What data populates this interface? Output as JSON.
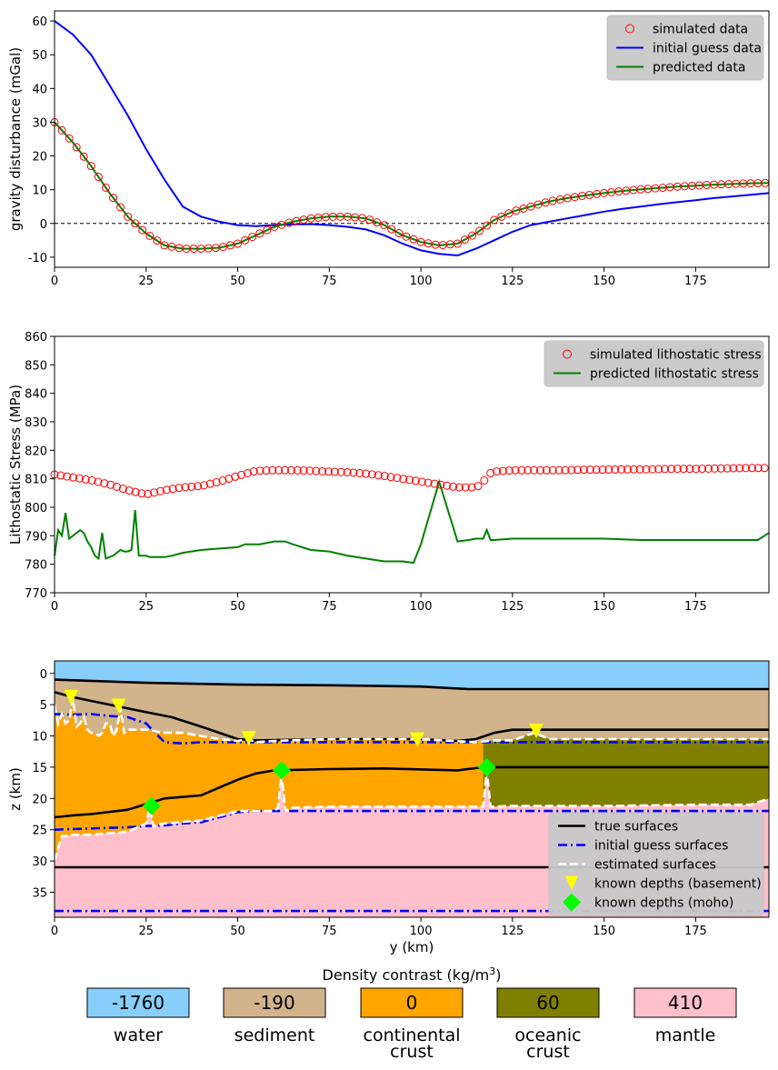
{
  "chart_data": [
    {
      "type": "line",
      "ylabel": "gravity disturbance (mGal)",
      "xlim": [
        0,
        195
      ],
      "ylim": [
        -13,
        63
      ],
      "xticks": [
        0,
        25,
        50,
        75,
        100,
        125,
        150,
        175
      ],
      "yticks": [
        -10,
        0,
        10,
        20,
        30,
        40,
        50,
        60
      ],
      "xtick_labels": [
        "0",
        "25",
        "50",
        "75",
        "100",
        "125",
        "150",
        "175"
      ],
      "ytick_labels": [
        "-10",
        "0",
        "10",
        "20",
        "30",
        "40",
        "50",
        "60"
      ],
      "zero_line": true,
      "legend": {
        "placement": "top-right",
        "entries": [
          "simulated data",
          "initial guess data",
          "predicted data"
        ]
      },
      "series": [
        {
          "name": "simulated data",
          "style": "markers",
          "color": "#ff0000",
          "x": [
            0,
            5,
            10,
            15,
            20,
            25,
            30,
            35,
            40,
            45,
            50,
            55,
            60,
            65,
            70,
            75,
            80,
            85,
            90,
            95,
            100,
            105,
            110,
            115,
            120,
            125,
            130,
            135,
            140,
            145,
            150,
            155,
            160,
            165,
            170,
            175,
            180,
            185,
            190,
            195
          ],
          "y": [
            30,
            24,
            17,
            9,
            2,
            -3,
            -6.5,
            -7.5,
            -7.5,
            -7.2,
            -6,
            -3.5,
            -1,
            0.5,
            1.5,
            2,
            2,
            1.5,
            -0.5,
            -3.5,
            -5.5,
            -6.5,
            -6,
            -3,
            1,
            3.5,
            5,
            6.5,
            7.5,
            8.3,
            9,
            9.6,
            10.1,
            10.5,
            10.9,
            11.2,
            11.5,
            11.7,
            11.9,
            12
          ]
        },
        {
          "name": "initial guess data",
          "style": "line",
          "color": "#0000ff",
          "x": [
            0,
            5,
            10,
            15,
            20,
            25,
            30,
            35,
            40,
            45,
            50,
            55,
            60,
            65,
            70,
            75,
            80,
            85,
            90,
            95,
            100,
            105,
            110,
            115,
            120,
            125,
            130,
            135,
            140,
            145,
            150,
            155,
            160,
            165,
            170,
            175,
            180,
            185,
            190,
            195
          ],
          "y": [
            60,
            56,
            50,
            41,
            32,
            22,
            13,
            5,
            2,
            0.5,
            -0.5,
            -0.8,
            -0.5,
            -0.3,
            -0.2,
            -0.5,
            -1,
            -1.8,
            -3.5,
            -6,
            -8,
            -9,
            -9.5,
            -7.5,
            -5,
            -2.5,
            -0.5,
            0.5,
            1.5,
            2.5,
            3.5,
            4.3,
            5,
            5.7,
            6.3,
            6.9,
            7.5,
            8,
            8.5,
            9
          ]
        },
        {
          "name": "predicted data",
          "style": "line",
          "color": "#008000",
          "x": [
            0,
            5,
            10,
            15,
            20,
            25,
            30,
            35,
            40,
            45,
            50,
            55,
            60,
            65,
            70,
            75,
            80,
            85,
            90,
            95,
            100,
            105,
            110,
            115,
            120,
            125,
            130,
            135,
            140,
            145,
            150,
            155,
            160,
            165,
            170,
            175,
            180,
            185,
            190,
            195
          ],
          "y": [
            30,
            24,
            17,
            9,
            2,
            -3,
            -6.5,
            -7.5,
            -7.5,
            -7.2,
            -6,
            -3.5,
            -1,
            0.5,
            1.5,
            2,
            2,
            1.5,
            -0.5,
            -3.5,
            -5.5,
            -6.5,
            -6,
            -3,
            1,
            3.5,
            5,
            6.5,
            7.5,
            8.3,
            9,
            9.6,
            10.1,
            10.5,
            10.9,
            11.2,
            11.5,
            11.7,
            11.9,
            12
          ]
        }
      ]
    },
    {
      "type": "line",
      "ylabel": "Lithostatic Stress (MPa)",
      "xlim": [
        0,
        195
      ],
      "ylim": [
        770,
        860
      ],
      "xticks": [
        0,
        25,
        50,
        75,
        100,
        125,
        150,
        175
      ],
      "yticks": [
        770,
        780,
        790,
        800,
        810,
        820,
        830,
        840,
        850,
        860
      ],
      "xtick_labels": [
        "0",
        "25",
        "50",
        "75",
        "100",
        "125",
        "150",
        "175"
      ],
      "ytick_labels": [
        "770",
        "780",
        "790",
        "800",
        "810",
        "820",
        "830",
        "840",
        "850",
        "860"
      ],
      "legend": {
        "placement": "top-right",
        "entries": [
          "simulated lithostatic stress",
          "predicted lithostatic stress"
        ]
      },
      "series": [
        {
          "name": "simulated lithostatic stress",
          "style": "markers",
          "color": "#ff0000",
          "x": [
            0,
            5,
            10,
            15,
            20,
            25,
            30,
            35,
            40,
            45,
            50,
            55,
            60,
            65,
            70,
            75,
            80,
            85,
            90,
            95,
            100,
            105,
            110,
            115,
            117,
            118,
            120,
            125,
            130,
            135,
            140,
            145,
            150,
            155,
            160,
            165,
            170,
            175,
            180,
            185,
            190,
            195
          ],
          "y": [
            811.5,
            810.5,
            809.5,
            808,
            806,
            804.5,
            806,
            807,
            807.5,
            809,
            811,
            812.8,
            813,
            813,
            812.8,
            812.5,
            812.3,
            811.8,
            811,
            810,
            809,
            808,
            807,
            807,
            808.5,
            811.5,
            812.5,
            813,
            813,
            813,
            813,
            813.2,
            813.2,
            813.3,
            813.3,
            813.4,
            813.5,
            813.5,
            813.6,
            813.7,
            813.8,
            813.8
          ]
        },
        {
          "name": "predicted lithostatic stress",
          "style": "line",
          "color": "#008000",
          "x": [
            0,
            1,
            2,
            3,
            4,
            5,
            6,
            7,
            8,
            9,
            10,
            11,
            12,
            13,
            14,
            15,
            16,
            17,
            18,
            19,
            20,
            21,
            22,
            23,
            24,
            25,
            26,
            26.5,
            28,
            30,
            32,
            35,
            40,
            45,
            50,
            52,
            53,
            54,
            56,
            60,
            61,
            62,
            63,
            65,
            70,
            75,
            80,
            85,
            90,
            95,
            98,
            100,
            105,
            110,
            113,
            115,
            116,
            117,
            118,
            119,
            120,
            125,
            130,
            131,
            132,
            133,
            135,
            140,
            150,
            160,
            170,
            180,
            185,
            190,
            192,
            195
          ],
          "y": [
            783,
            792,
            790,
            798,
            789,
            790,
            791,
            792,
            791,
            788,
            786,
            783,
            782,
            791,
            782,
            782.5,
            783,
            784,
            785,
            784.5,
            784.5,
            785,
            799,
            783,
            783,
            783,
            782.5,
            782.5,
            782.5,
            782.5,
            783,
            784,
            785,
            785.5,
            786,
            787,
            787,
            787,
            787,
            788,
            788,
            788,
            788,
            787,
            785,
            784.5,
            783,
            782,
            781,
            781,
            780.5,
            787,
            809,
            788,
            788.5,
            789,
            789,
            789,
            792,
            788.5,
            788.5,
            789,
            789,
            789,
            789,
            789,
            789,
            789,
            789,
            788.5,
            788.5,
            788.5,
            788.5,
            788.5,
            788.5,
            791
          ]
        }
      ]
    },
    {
      "type": "area",
      "xlabel": "y (km)",
      "ylabel": "z (km)",
      "xlim": [
        0,
        195
      ],
      "ylim": [
        39,
        -2
      ],
      "xticks": [
        0,
        25,
        50,
        75,
        100,
        125,
        150,
        175
      ],
      "yticks": [
        0,
        5,
        10,
        15,
        20,
        25,
        30,
        35
      ],
      "xtick_labels": [
        "0",
        "25",
        "50",
        "75",
        "100",
        "125",
        "150",
        "175"
      ],
      "ytick_labels": [
        "0",
        "5",
        "10",
        "15",
        "20",
        "25",
        "30",
        "35"
      ],
      "legend": {
        "placement": "bottom-right",
        "entries": [
          "true surfaces",
          "initial guess surfaces",
          "estimated surfaces",
          "known depths (basement)",
          "known depths (moho)"
        ]
      },
      "materials": {
        "ocean_crust_start": 117
      },
      "surfaces": {
        "true_water_bottom": {
          "x": [
            0,
            25,
            50,
            75,
            100,
            113,
            125,
            150,
            175,
            195
          ],
          "z": [
            1,
            1.5,
            1.8,
            1.9,
            2.1,
            2.5,
            2.5,
            2.5,
            2.5,
            2.5
          ]
        },
        "true_basement": {
          "x": [
            0,
            5,
            15,
            25,
            32,
            40,
            45,
            50,
            55,
            75,
            100,
            110,
            115,
            120,
            125,
            150,
            175,
            195
          ],
          "z": [
            3,
            3.8,
            5,
            6.2,
            7,
            8.5,
            9.5,
            10.5,
            10.7,
            10.5,
            10.5,
            10.8,
            10.5,
            9.5,
            9,
            9,
            9,
            9
          ]
        },
        "true_ocean_interface": {
          "x": [
            0,
            5,
            10,
            20,
            30,
            40,
            50,
            55,
            60,
            75,
            90,
            110,
            117,
            150,
            195
          ],
          "z": [
            23,
            22.7,
            22.5,
            21.8,
            20,
            19.5,
            17,
            16,
            15.5,
            15.3,
            15.2,
            15.5,
            15,
            15,
            15
          ]
        },
        "true_moho": {
          "x": [
            0,
            195
          ],
          "z": [
            31,
            31
          ]
        },
        "initial_basement": {
          "x": [
            0,
            5,
            10,
            15,
            20,
            25,
            30,
            35,
            40,
            50,
            75,
            100,
            125,
            150,
            175,
            195
          ],
          "z": [
            6.5,
            6.6,
            6.5,
            6.8,
            7,
            8,
            11,
            11.2,
            11,
            11,
            11,
            11,
            11,
            11,
            11,
            11
          ]
        },
        "initial_moho": {
          "x": [
            0,
            10,
            20,
            25,
            30,
            35,
            40,
            45,
            50,
            55,
            75,
            100,
            125,
            150,
            175,
            195
          ],
          "z": [
            25,
            24.8,
            24.6,
            24.4,
            24.3,
            24,
            23.8,
            23,
            22.2,
            22,
            22,
            22,
            22,
            22,
            22,
            22
          ]
        },
        "initial_deep": {
          "x": [
            0,
            195
          ],
          "z": [
            38,
            38
          ]
        },
        "estimated_basement": {
          "x": [
            0,
            1,
            2,
            3,
            4,
            5,
            6,
            7,
            8,
            9,
            10,
            11,
            12,
            13,
            14,
            15,
            16,
            17,
            18,
            19,
            20,
            25,
            30,
            35,
            40,
            45,
            50,
            53,
            55,
            60,
            75,
            100,
            115,
            120,
            125,
            131,
            135,
            150,
            175,
            195
          ],
          "z": [
            5,
            8,
            6.5,
            8,
            7.5,
            4,
            8.5,
            8,
            7,
            9,
            9.5,
            9.5,
            10,
            9.5,
            8,
            8,
            10,
            9,
            5.5,
            9.5,
            9,
            9,
            9.5,
            9.5,
            10,
            10.5,
            10.8,
            10.5,
            11,
            10.8,
            10.5,
            10.5,
            11,
            10.7,
            10.7,
            9.5,
            10.5,
            10.5,
            10.5,
            10.5
          ]
        },
        "estimated_moho": {
          "x": [
            0,
            1,
            2,
            3,
            5,
            10,
            20,
            25,
            26,
            27,
            28,
            30,
            40,
            50,
            55,
            60,
            61,
            62,
            63,
            65,
            75,
            100,
            116,
            117,
            118,
            119,
            120,
            125,
            150,
            175,
            190,
            195
          ],
          "z": [
            30,
            28,
            26,
            26,
            25.8,
            25.8,
            25.3,
            24,
            21.5,
            24.5,
            24.2,
            24,
            23.5,
            22,
            22,
            22,
            21.5,
            16,
            22,
            21.5,
            21.3,
            21.3,
            21.3,
            21.3,
            15.5,
            21.3,
            21.3,
            21.2,
            21.2,
            21,
            21,
            20
          ]
        }
      },
      "known_depths_basement": {
        "x": [
          4.5,
          17.5,
          53,
          99,
          131.5
        ],
        "z": [
          3.8,
          5.2,
          10.4,
          10.6,
          9.2
        ]
      },
      "known_depths_moho": {
        "x": [
          26.5,
          62,
          118
        ],
        "z": [
          21.2,
          15.5,
          15
        ]
      }
    }
  ],
  "density_legend": {
    "title_main": "Density contrast (kg/m",
    "title_sup": "3",
    "title_end": ")",
    "items": [
      {
        "value": "-1760",
        "line1": "water",
        "line2": "",
        "color": "#87cefa"
      },
      {
        "value": "-190",
        "line1": "sediment",
        "line2": "",
        "color": "#d2b48c"
      },
      {
        "value": "0",
        "line1": "continental",
        "line2": "crust",
        "color": "#ffa500"
      },
      {
        "value": "60",
        "line1": "oceanic",
        "line2": "crust",
        "color": "#808000"
      },
      {
        "value": "410",
        "line1": "mantle",
        "line2": "",
        "color": "#ffc0cb"
      }
    ]
  }
}
